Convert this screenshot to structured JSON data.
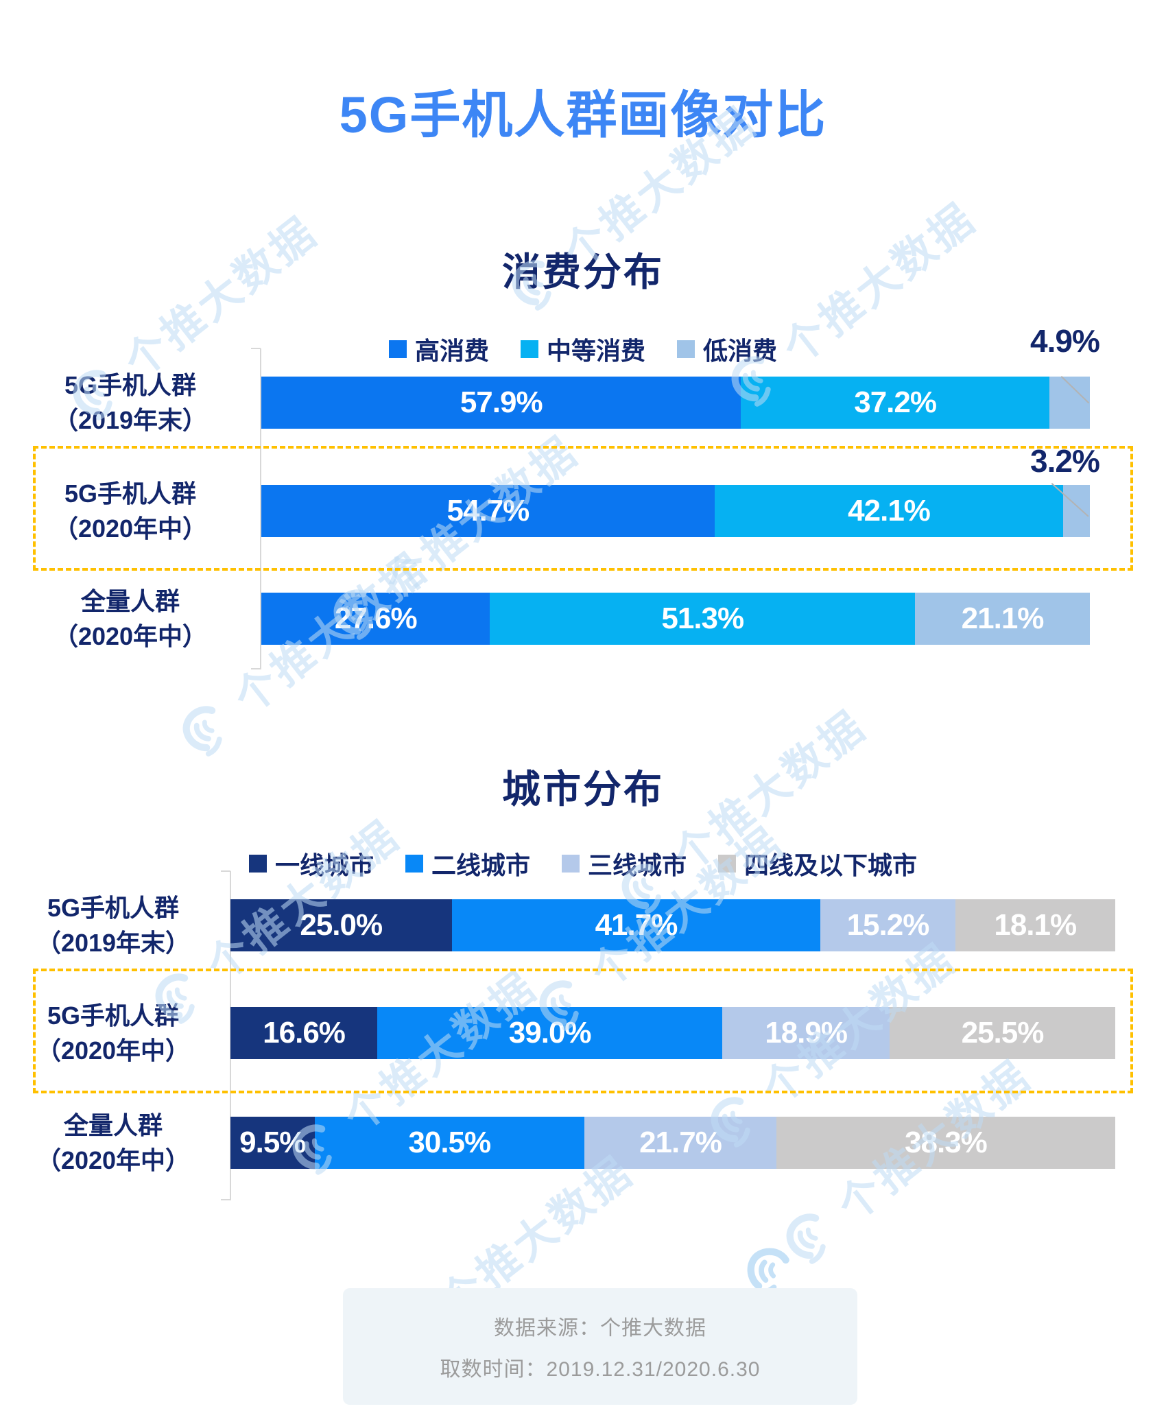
{
  "page": {
    "title": "5G手机人群画像对比",
    "watermark_text": "个推大数据"
  },
  "colors": {
    "title_blue": "#3d86f5",
    "navy_text": "#12266b",
    "dashed_highlight": "#ffc000",
    "axis_gray": "#d8d8d8",
    "footer_bg": "#eef4f8",
    "footer_text": "#9b9b9b",
    "watermark_blue": "#bfdcf5"
  },
  "chart_data": [
    {
      "type": "bar",
      "orientation": "horizontal",
      "stacked": true,
      "title": "消费分布",
      "categories": [
        "5G手机人群（2019年末）",
        "5G手机人群（2020年中）",
        "全量人群（2020年中）"
      ],
      "series": [
        {
          "name": "高消费",
          "color": "#0b76f0",
          "values": [
            57.9,
            54.7,
            27.6
          ]
        },
        {
          "name": "中等消费",
          "color": "#06b1f2",
          "values": [
            37.2,
            42.1,
            51.3
          ]
        },
        {
          "name": "低消费",
          "color": "#a0c4e8",
          "values": [
            4.9,
            3.2,
            21.1
          ]
        }
      ],
      "unit": "%",
      "xlim": [
        0,
        100
      ],
      "legend_position": "top",
      "grid": false,
      "highlighted_category": "5G手机人群（2020年中）"
    },
    {
      "type": "bar",
      "orientation": "horizontal",
      "stacked": true,
      "title": "城市分布",
      "categories": [
        "5G手机人群（2019年末）",
        "5G手机人群（2020年中）",
        "全量人群（2020年中）"
      ],
      "series": [
        {
          "name": "一线城市",
          "color": "#16357d",
          "values": [
            25.0,
            16.6,
            9.5
          ]
        },
        {
          "name": "二线城市",
          "color": "#0888f7",
          "values": [
            41.7,
            39.0,
            30.5
          ]
        },
        {
          "name": "三线城市",
          "color": "#b4c9ea",
          "values": [
            15.2,
            18.9,
            21.7
          ]
        },
        {
          "name": "四线及以下城市",
          "color": "#cbcaca",
          "values": [
            18.1,
            25.5,
            38.3
          ]
        }
      ],
      "unit": "%",
      "xlim": [
        0,
        100
      ],
      "legend_position": "top",
      "grid": false,
      "highlighted_category": "5G手机人群（2020年中）"
    }
  ],
  "ui": {
    "charts": [
      {
        "title": "消费分布",
        "rows": [
          {
            "label1": "5G手机人群",
            "label2": "（2019年末）",
            "segments": [
              "57.9%",
              "37.2%",
              ""
            ],
            "callout": "4.9%"
          },
          {
            "label1": "5G手机人群",
            "label2": "（2020年中）",
            "segments": [
              "54.7%",
              "42.1%",
              ""
            ],
            "callout": "3.2%"
          },
          {
            "label1": "全量人群",
            "label2": "（2020年中）",
            "segments": [
              "27.6%",
              "51.3%",
              "21.1%"
            ]
          }
        ]
      },
      {
        "title": "城市分布",
        "rows": [
          {
            "label1": "5G手机人群",
            "label2": "（2019年末）",
            "segments": [
              "25.0%",
              "41.7%",
              "15.2%",
              "18.1%"
            ]
          },
          {
            "label1": "5G手机人群",
            "label2": "（2020年中）",
            "segments": [
              "16.6%",
              "39.0%",
              "18.9%",
              "25.5%"
            ]
          },
          {
            "label1": "全量人群",
            "label2": "（2020年中）",
            "segments": [
              "9.5%",
              "30.5%",
              "21.7%",
              "38.3%"
            ]
          }
        ]
      }
    ]
  },
  "footer": {
    "line1": "数据来源：个推大数据",
    "line2": "取数时间：2019.12.31/2020.6.30"
  }
}
